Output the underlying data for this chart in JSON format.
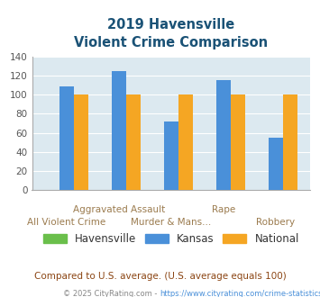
{
  "title_line1": "2019 Havensville",
  "title_line2": "Violent Crime Comparison",
  "categories": [
    "All Violent Crime",
    "Aggravated Assault",
    "Murder & Mans...",
    "Rape",
    "Robbery"
  ],
  "series": {
    "Havensville": [
      0,
      0,
      0,
      0,
      0
    ],
    "Kansas": [
      109,
      125,
      72,
      115,
      55
    ],
    "National": [
      100,
      100,
      100,
      100,
      100
    ]
  },
  "colors": {
    "Havensville": "#6abf4b",
    "Kansas": "#4a90d9",
    "National": "#f5a623"
  },
  "ylim": [
    0,
    140
  ],
  "yticks": [
    0,
    20,
    40,
    60,
    80,
    100,
    120,
    140
  ],
  "chart_bg": "#dce9f0",
  "title_color": "#1a5276",
  "xtick_color": "#9b7b4e",
  "ytick_color": "#555555",
  "footnote1": "Compared to U.S. average. (U.S. average equals 100)",
  "footnote2_prefix": "© 2025 CityRating.com - ",
  "footnote2_link": "https://www.cityrating.com/crime-statistics/",
  "footnote1_color": "#8b4513",
  "footnote2_color": "#888888",
  "footnote2_link_color": "#4a90d9"
}
